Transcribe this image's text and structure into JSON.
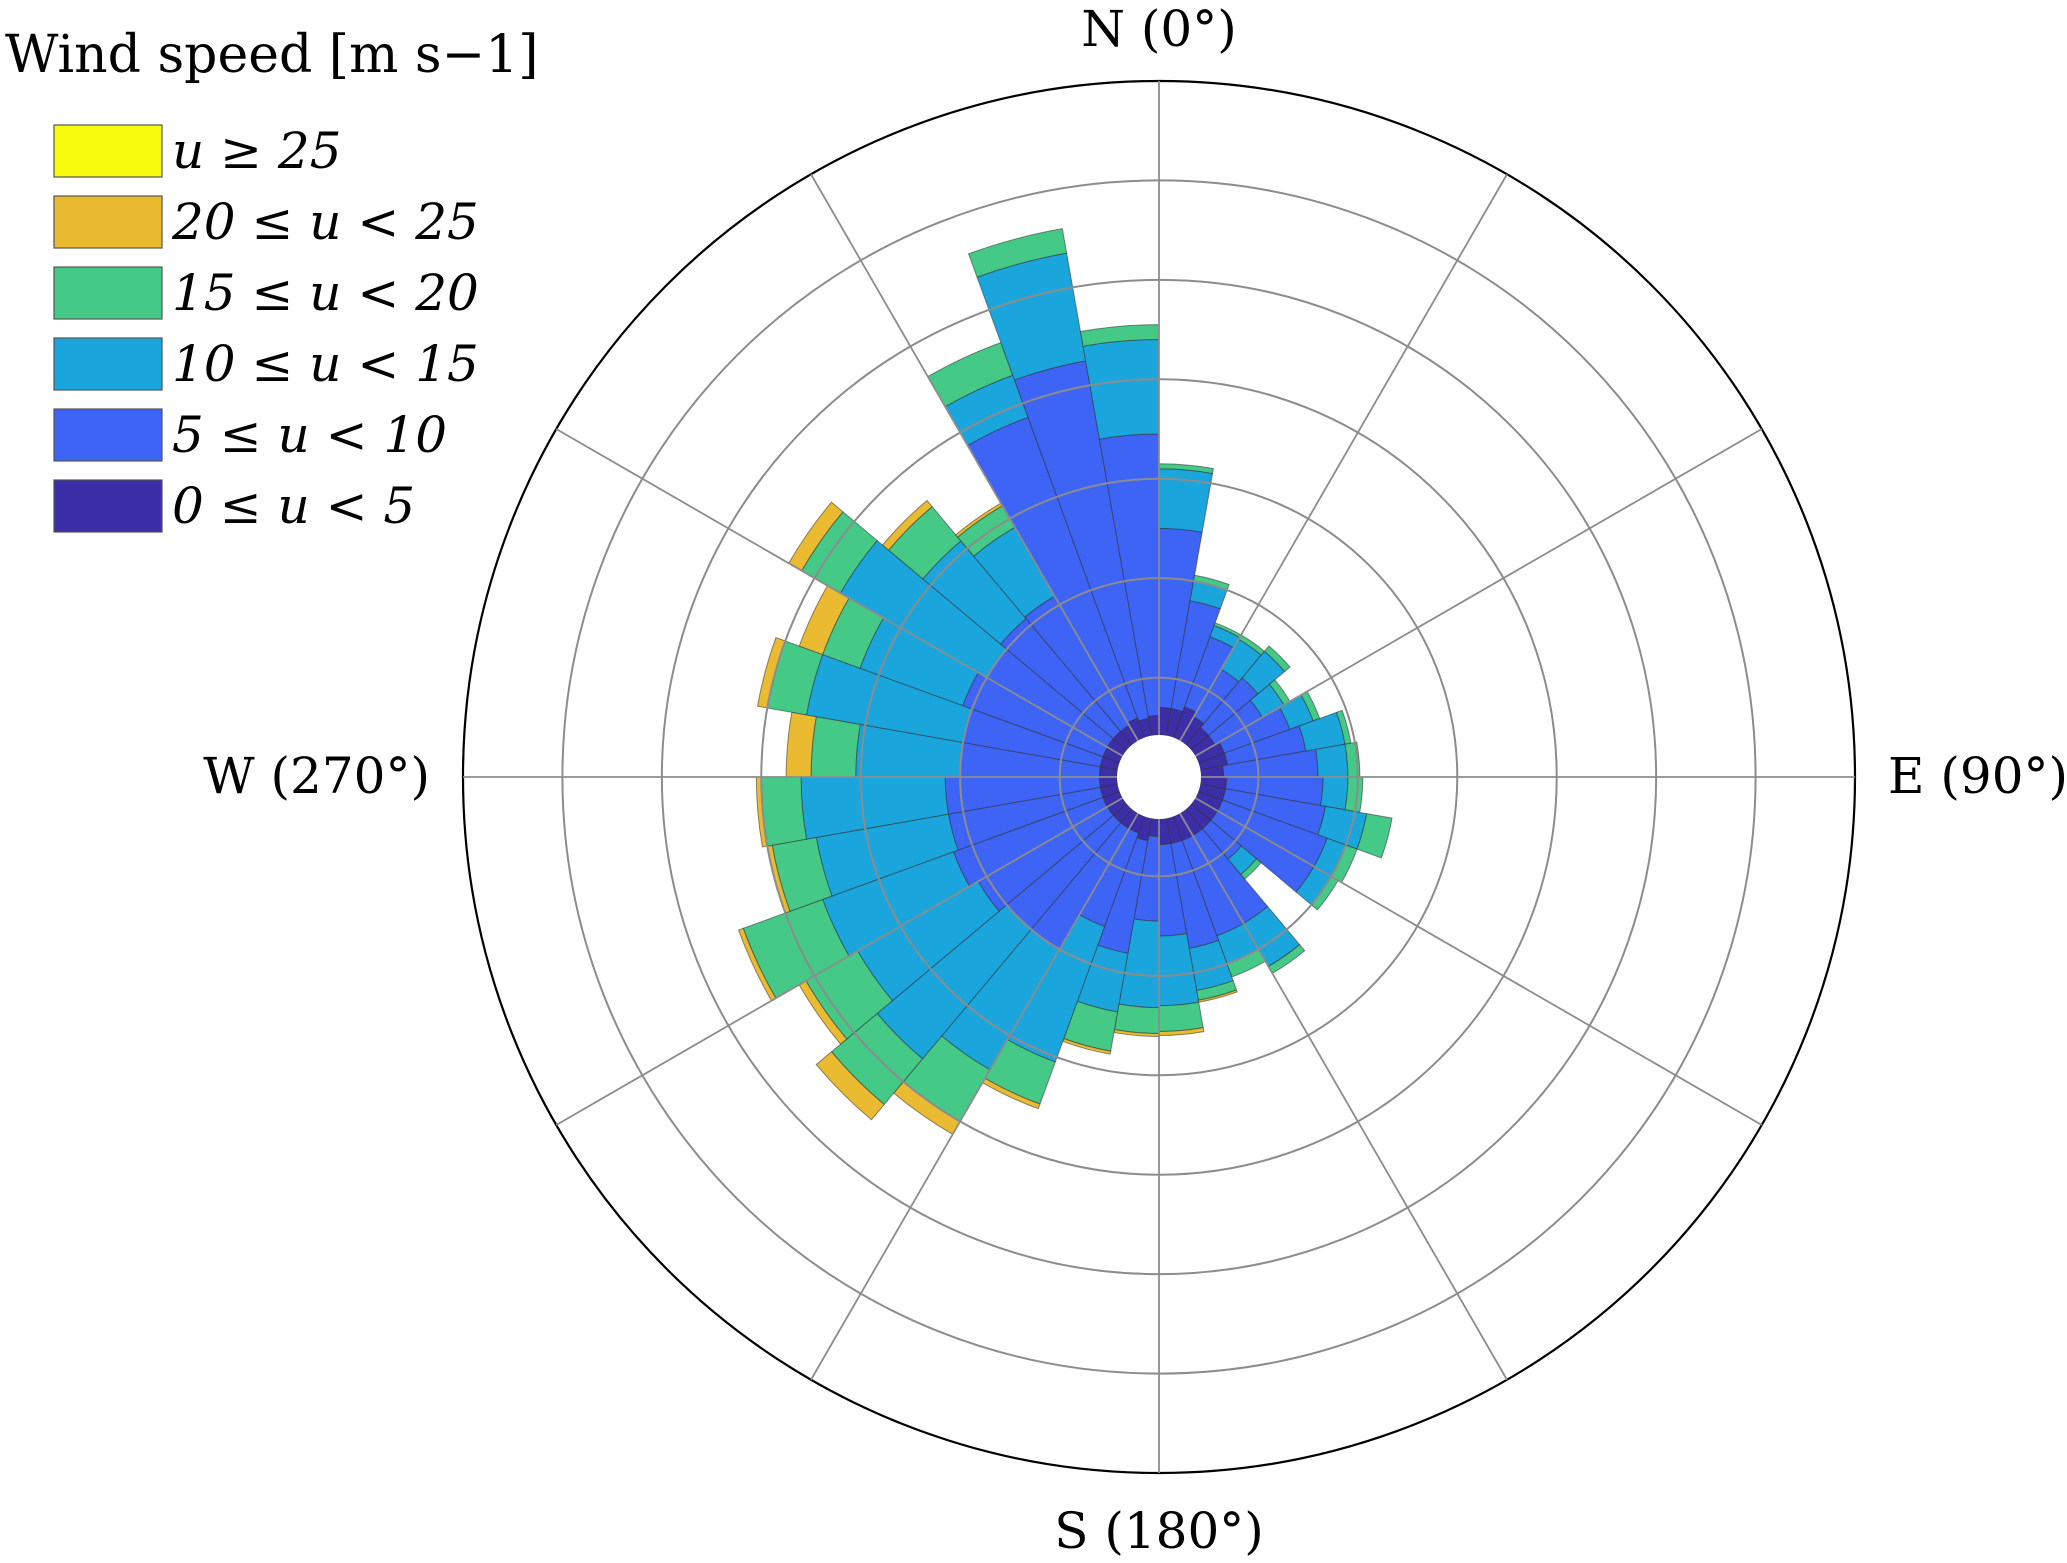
{
  "chart_data": {
    "type": "windrose",
    "title": "",
    "directions": {
      "north": "N (0°)",
      "east": "E (90°)",
      "south": "S (180°)",
      "west": "W (270°)"
    },
    "legend": {
      "title": "Wind speed [m s−1]",
      "placement": "top-left",
      "entries": [
        {
          "label": "u ≥ 25",
          "color": "#f9fb0e"
        },
        {
          "label": "20 ≤ u < 25",
          "color": "#eaba30"
        },
        {
          "label": "15 ≤ u < 20",
          "color": "#45c987"
        },
        {
          "label": "10 ≤ u < 15",
          "color": "#1aa6dd"
        },
        {
          "label": "5 ≤ u < 10",
          "color": "#3e64f6"
        },
        {
          "label": "0 ≤ u < 5",
          "color": "#3c2ea8"
        }
      ]
    },
    "bin_width_deg": 10,
    "series_order": [
      "0 ≤ u < 5",
      "5 ≤ u < 10",
      "10 ≤ u < 15",
      "15 ≤ u < 20",
      "20 ≤ u < 25",
      "u ≥ 25"
    ],
    "series_colors": [
      "#3c2ea8",
      "#3e64f6",
      "#1aa6dd",
      "#45c987",
      "#eaba30",
      "#f9fb0e"
    ],
    "grid": true,
    "radial_max": 7,
    "radial_rings": [
      1,
      2,
      3,
      4,
      5,
      6,
      7
    ],
    "bins": [
      {
        "dir": 5,
        "cum": [
          0.7,
          2.5,
          3.1,
          3.15,
          3.15,
          3.15
        ]
      },
      {
        "dir": 15,
        "cum": [
          0.7,
          1.8,
          2.0,
          2.06,
          2.06,
          2.06
        ]
      },
      {
        "dir": 25,
        "cum": [
          0.75,
          1.5,
          1.62,
          1.65,
          1.65,
          1.65
        ]
      },
      {
        "dir": 35,
        "cum": [
          0.7,
          1.25,
          1.6,
          1.65,
          1.65,
          1.65
        ]
      },
      {
        "dir": 45,
        "cum": [
          0.65,
          1.3,
          1.65,
          1.72,
          1.72,
          1.72
        ]
      },
      {
        "dir": 55,
        "cum": [
          0.65,
          1.2,
          1.45,
          1.52,
          1.52,
          1.52
        ]
      },
      {
        "dir": 65,
        "cum": [
          0.7,
          1.4,
          1.65,
          1.72,
          1.72,
          1.72
        ]
      },
      {
        "dir": 75,
        "cum": [
          0.7,
          1.5,
          1.9,
          1.96,
          1.96,
          1.96
        ]
      },
      {
        "dir": 85,
        "cum": [
          0.65,
          1.6,
          1.9,
          2.02,
          2.02,
          2.02
        ]
      },
      {
        "dir": 95,
        "cum": [
          0.68,
          1.65,
          1.9,
          2.05,
          2.05,
          2.05
        ]
      },
      {
        "dir": 105,
        "cum": [
          0.68,
          1.7,
          2.12,
          2.38,
          2.38,
          2.38
        ]
      },
      {
        "dir": 115,
        "cum": [
          0.68,
          1.8,
          2.0,
          2.12,
          2.12,
          2.12
        ]
      },
      {
        "dir": 125,
        "cum": [
          0.68,
          1.8,
          2.0,
          2.08,
          2.08,
          2.08
        ]
      },
      {
        "dir": 135,
        "cum": [
          0.68,
          1.08,
          1.28,
          1.34,
          1.34,
          1.34
        ]
      },
      {
        "dir": 145,
        "cum": [
          0.68,
          1.7,
          2.2,
          2.28,
          2.28,
          2.28
        ]
      },
      {
        "dir": 155,
        "cum": [
          0.68,
          1.7,
          2.0,
          2.14,
          2.14,
          2.14
        ]
      },
      {
        "dir": 165,
        "cum": [
          0.68,
          1.75,
          2.18,
          2.28,
          2.3,
          2.3
        ]
      },
      {
        "dir": 175,
        "cum": [
          0.68,
          1.6,
          2.3,
          2.56,
          2.6,
          2.6
        ]
      },
      {
        "dir": 185,
        "cum": [
          0.6,
          1.45,
          2.32,
          2.58,
          2.61,
          2.61
        ]
      },
      {
        "dir": 195,
        "cum": [
          0.65,
          1.8,
          2.4,
          2.8,
          2.83,
          2.83
        ]
      },
      {
        "dir": 205,
        "cum": [
          0.6,
          1.6,
          3.05,
          3.5,
          3.55,
          3.55
        ]
      },
      {
        "dir": 215,
        "cum": [
          0.6,
          2.0,
          3.4,
          4.0,
          4.15,
          4.15
        ]
      },
      {
        "dir": 225,
        "cum": [
          0.6,
          2.0,
          3.7,
          4.3,
          4.5,
          4.5
        ]
      },
      {
        "dir": 235,
        "cum": [
          0.6,
          2.1,
          3.5,
          4.1,
          4.18,
          4.18
        ]
      },
      {
        "dir": 245,
        "cum": [
          0.6,
          2.2,
          3.6,
          4.45,
          4.5,
          4.5
        ]
      },
      {
        "dir": 255,
        "cum": [
          0.6,
          2.15,
          3.5,
          3.95,
          4.0,
          4.0
        ]
      },
      {
        "dir": 265,
        "cum": [
          0.6,
          2.15,
          3.6,
          4.0,
          4.05,
          4.05
        ]
      },
      {
        "dir": 275,
        "cum": [
          0.6,
          2.0,
          3.05,
          3.5,
          3.75,
          3.75
        ]
      },
      {
        "dir": 285,
        "cum": [
          0.6,
          2.0,
          3.6,
          4.0,
          4.1,
          4.1
        ]
      },
      {
        "dir": 295,
        "cum": [
          0.6,
          2.1,
          3.2,
          3.6,
          3.85,
          3.85
        ]
      },
      {
        "dir": 305,
        "cum": [
          0.6,
          2.0,
          3.7,
          4.15,
          4.3,
          4.3
        ]
      },
      {
        "dir": 315,
        "cum": [
          0.6,
          2.08,
          3.1,
          3.55,
          3.63,
          3.63
        ]
      },
      {
        "dir": 325,
        "cum": [
          0.6,
          2.1,
          2.9,
          3.15,
          3.18,
          3.18
        ]
      },
      {
        "dir": 335,
        "cum": [
          0.63,
          3.85,
          4.3,
          4.65,
          4.65,
          4.65
        ]
      },
      {
        "dir": 345,
        "cum": [
          0.6,
          4.25,
          5.35,
          5.6,
          5.6,
          5.6
        ]
      },
      {
        "dir": 355,
        "cum": [
          0.62,
          3.45,
          4.4,
          4.55,
          4.55,
          4.55
        ]
      }
    ]
  }
}
